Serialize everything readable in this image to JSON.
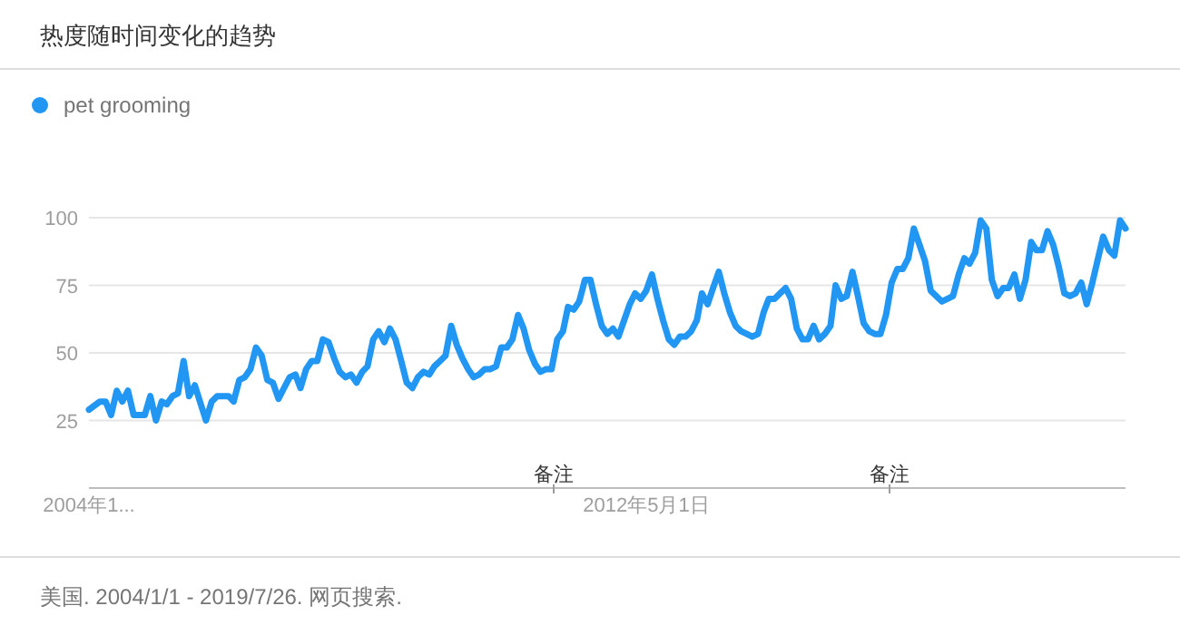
{
  "chart_data": {
    "type": "line",
    "title": "热度随时间变化的趋势",
    "legend": "top left",
    "grid": "y",
    "ylim": [
      0,
      100
    ],
    "yticks": [
      25,
      50,
      75,
      100
    ],
    "xlim": [
      "2004-01",
      "2019-07"
    ],
    "xticks": [
      {
        "value": "2004-01",
        "label": "2004年1..."
      },
      {
        "value": "2012-05",
        "label": "2012年5月1日"
      }
    ],
    "annotations": [
      "备注",
      "备注",
      "美国. 2004/1/1 - 2019/7/26. 网页搜索."
    ],
    "x": [
      "2004-01",
      "2004-03",
      "2004-04",
      "2004-05",
      "2004-06",
      "2004-07",
      "2004-08",
      "2004-09",
      "2004-11",
      "2004-12",
      "2005-01",
      "2005-02",
      "2005-03",
      "2005-04",
      "2005-05",
      "2005-06",
      "2005-07",
      "2005-08",
      "2005-10",
      "2005-11",
      "2005-12",
      "2006-02",
      "2006-03",
      "2006-04",
      "2006-05",
      "2006-06",
      "2006-07",
      "2006-08",
      "2006-09",
      "2006-10",
      "2006-11",
      "2006-12",
      "2007-01",
      "2007-02",
      "2007-03",
      "2007-04",
      "2007-05",
      "2007-06",
      "2007-07",
      "2007-08",
      "2007-09",
      "2007-10",
      "2007-11",
      "2007-12",
      "2008-01",
      "2008-02",
      "2008-03",
      "2008-04",
      "2008-05",
      "2008-06",
      "2008-07",
      "2008-08",
      "2008-09",
      "2008-10",
      "2008-11",
      "2008-12",
      "2009-01",
      "2009-02",
      "2009-03",
      "2009-04",
      "2009-05",
      "2009-06",
      "2009-07",
      "2009-08",
      "2009-09",
      "2009-10",
      "2009-11",
      "2009-12",
      "2010-01",
      "2010-02",
      "2010-03",
      "2010-04",
      "2010-05",
      "2010-06",
      "2010-07",
      "2010-08",
      "2010-09",
      "2010-10",
      "2010-11",
      "2010-12",
      "2011-01",
      "2011-02",
      "2011-03",
      "2011-04",
      "2011-05",
      "2011-06",
      "2011-07",
      "2011-08",
      "2011-09",
      "2011-10",
      "2011-11",
      "2011-12",
      "2012-01",
      "2012-02",
      "2012-03",
      "2012-04",
      "2012-05",
      "2012-06",
      "2012-07",
      "2012-08",
      "2012-09",
      "2012-10",
      "2012-11",
      "2012-12",
      "2013-01",
      "2013-02",
      "2013-03",
      "2013-04",
      "2013-05",
      "2013-06",
      "2013-07",
      "2013-08",
      "2013-09",
      "2013-10",
      "2013-11",
      "2013-12",
      "2014-01",
      "2014-02",
      "2014-03",
      "2014-04",
      "2014-05",
      "2014-06",
      "2014-07",
      "2014-08",
      "2014-09",
      "2014-10",
      "2014-11",
      "2014-12",
      "2015-01",
      "2015-02",
      "2015-03",
      "2015-04",
      "2015-05",
      "2015-06",
      "2015-07",
      "2015-08",
      "2015-09",
      "2015-10",
      "2015-11",
      "2015-12",
      "2016-01",
      "2016-02",
      "2016-03",
      "2016-04",
      "2016-05",
      "2016-06",
      "2016-07",
      "2016-08",
      "2016-09",
      "2016-10",
      "2016-11",
      "2016-12",
      "2017-01",
      "2017-02",
      "2017-03",
      "2017-04",
      "2017-05",
      "2017-06",
      "2017-07",
      "2017-08",
      "2017-09",
      "2017-10",
      "2017-11",
      "2017-12",
      "2018-01",
      "2018-02",
      "2018-03",
      "2018-04",
      "2018-05",
      "2018-06",
      "2018-07",
      "2018-08",
      "2018-09",
      "2018-10",
      "2018-11",
      "2018-12",
      "2019-01",
      "2019-02",
      "2019-03",
      "2019-04",
      "2019-05",
      "2019-06",
      "2019-07"
    ],
    "series": [
      {
        "name": "pet grooming",
        "color": "#2196f3",
        "values": [
          29,
          32,
          32,
          27,
          36,
          32,
          36,
          27,
          27,
          34,
          25,
          32,
          31,
          34,
          35,
          47,
          34,
          38,
          25,
          32,
          34,
          34,
          32,
          40,
          41,
          44,
          52,
          49,
          40,
          39,
          33,
          37,
          41,
          42,
          37,
          44,
          47,
          47,
          55,
          54,
          48,
          43,
          41,
          42,
          39,
          43,
          45,
          55,
          58,
          54,
          59,
          55,
          47,
          39,
          37,
          41,
          43,
          42,
          45,
          47,
          49,
          60,
          53,
          48,
          44,
          41,
          42,
          44,
          44,
          45,
          52,
          52,
          55,
          64,
          59,
          51,
          46,
          43,
          44,
          44,
          55,
          58,
          67,
          66,
          69,
          77,
          77,
          68,
          60,
          57,
          59,
          56,
          62,
          68,
          72,
          70,
          73,
          79,
          70,
          62,
          55,
          53,
          56,
          56,
          58,
          62,
          72,
          68,
          74,
          80,
          72,
          65,
          60,
          58,
          57,
          56,
          57,
          65,
          70,
          70,
          72,
          74,
          70,
          59,
          55,
          55,
          60,
          55,
          57,
          60,
          75,
          70,
          71,
          80,
          71,
          61,
          58,
          57,
          57,
          64,
          76,
          81,
          81,
          85,
          96,
          90,
          84,
          73,
          71,
          69,
          70,
          71,
          79,
          85,
          83,
          87,
          99,
          96,
          77,
          71,
          74,
          74,
          79,
          70,
          77,
          91,
          88,
          88,
          95,
          90,
          82,
          72,
          71,
          72,
          76,
          68,
          76,
          85,
          93,
          88,
          86,
          99,
          96
        ]
      }
    ]
  }
}
